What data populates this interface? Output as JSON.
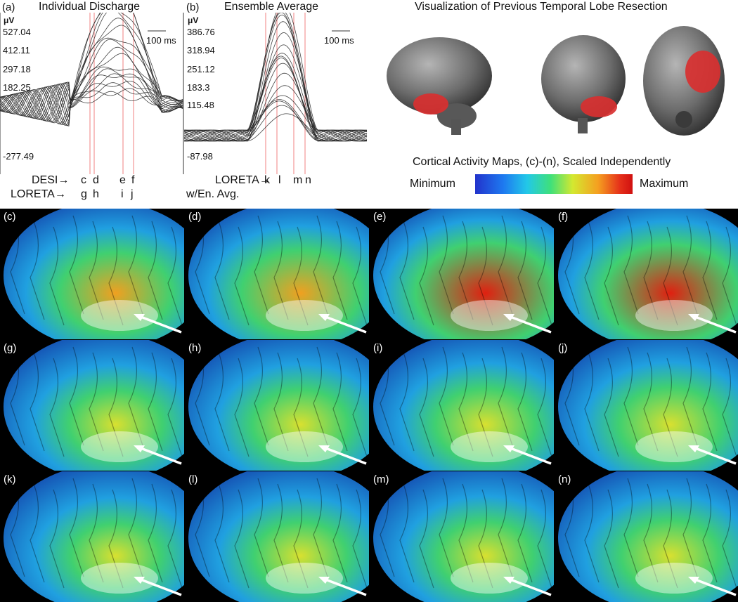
{
  "panel_a": {
    "label": "(a)",
    "title": "Individual Discharge",
    "unit": "μV",
    "scale_bar": "100 ms",
    "ticks": [
      "527.04",
      "412.11",
      "297.18",
      "182.25",
      "-277.49"
    ],
    "desi_label": "DESI→",
    "desi_markers": [
      "c",
      "d",
      "e",
      "f"
    ],
    "loreta_label": "LORETA→",
    "loreta_markers": [
      "g",
      "h",
      "i",
      "j"
    ]
  },
  "panel_b": {
    "label": "(b)",
    "title": "Ensemble Average",
    "unit": "μV",
    "scale_bar": "100 ms",
    "ticks": [
      "386.76",
      "318.94",
      "251.12",
      "183.3",
      "115.48",
      "-87.98"
    ],
    "loreta_label": "LORETA→",
    "loreta_markers": [
      "k",
      "l",
      "m",
      "n"
    ],
    "sub_label": "w/En. Avg."
  },
  "resection": {
    "title": "Visualization of Previous Temporal Lobe Resection"
  },
  "legend": {
    "title": "Cortical Activity Maps, (c)-(n), Scaled Independently",
    "min_label": "Minimum",
    "max_label": "Maximum"
  },
  "tiles": [
    {
      "label": "(c)",
      "activity": 0.55
    },
    {
      "label": "(d)",
      "activity": 0.62
    },
    {
      "label": "(e)",
      "activity": 0.85
    },
    {
      "label": "(f)",
      "activity": 0.8
    },
    {
      "label": "(g)",
      "activity": 0.35
    },
    {
      "label": "(h)",
      "activity": 0.38
    },
    {
      "label": "(i)",
      "activity": 0.42
    },
    {
      "label": "(j)",
      "activity": 0.45
    },
    {
      "label": "(k)",
      "activity": 0.3
    },
    {
      "label": "(l)",
      "activity": 0.34
    },
    {
      "label": "(m)",
      "activity": 0.36
    },
    {
      "label": "(n)",
      "activity": 0.4
    }
  ],
  "colors": {
    "accent_red": "#e03030",
    "marker_line": "#f08080",
    "trace": "#222222"
  }
}
